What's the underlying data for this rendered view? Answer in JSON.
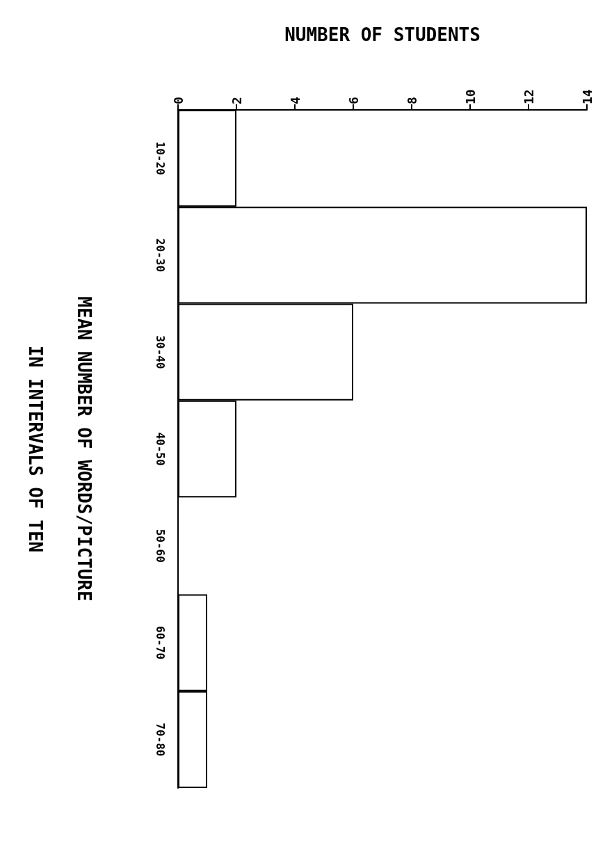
{
  "chart_data": {
    "type": "bar",
    "orientation": "horizontal",
    "xlabel": "NUMBER OF STUDENTS",
    "ylabel": "MEAN NUMBER OF WORDS/PICTURE\nIN INTERVALS OF TEN",
    "categories": [
      "10-20",
      "20-30",
      "30-40",
      "40-50",
      "50-60",
      "60-70",
      "70-80"
    ],
    "values": [
      2,
      14,
      6,
      2,
      0,
      1,
      1
    ],
    "color": "#ffffff",
    "xlim": [
      0,
      14
    ],
    "xticks": [
      0,
      2,
      4,
      6,
      8,
      10,
      12,
      14
    ],
    "grid": false
  }
}
